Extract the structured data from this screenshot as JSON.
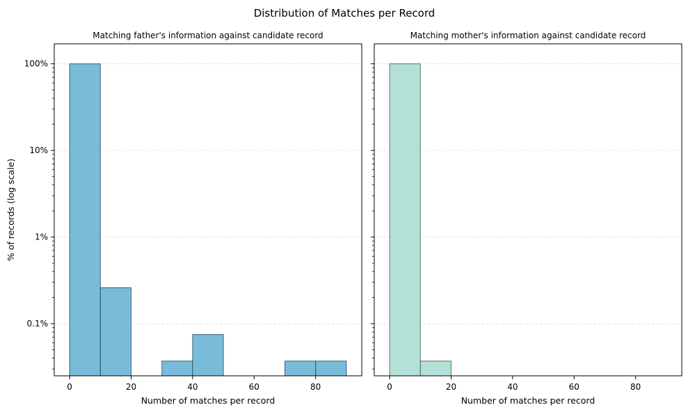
{
  "figure": {
    "suptitle": "Distribution of Matches per Record"
  },
  "chart_data": [
    {
      "type": "bar",
      "title": "Matching father's information against candidate record",
      "xlabel": "Number of matches per record",
      "ylabel": "% of records (log scale)",
      "yscale": "log",
      "xlim": [
        -5,
        95
      ],
      "ylim": [
        0.025,
        170
      ],
      "x_ticks": [
        0,
        20,
        40,
        60,
        80
      ],
      "y_ticks": [
        0.1,
        1,
        10,
        100
      ],
      "y_tick_labels": [
        "0.1%",
        "1%",
        "10%",
        "100%"
      ],
      "grid": "y dashed",
      "bar_color": "#78bcd9",
      "bins": [
        {
          "start": 0,
          "end": 10,
          "value": 100
        },
        {
          "start": 10,
          "end": 20,
          "value": 0.26
        },
        {
          "start": 20,
          "end": 30,
          "value": 0
        },
        {
          "start": 30,
          "end": 40,
          "value": 0.037
        },
        {
          "start": 40,
          "end": 50,
          "value": 0.075
        },
        {
          "start": 50,
          "end": 60,
          "value": 0
        },
        {
          "start": 60,
          "end": 70,
          "value": 0
        },
        {
          "start": 70,
          "end": 80,
          "value": 0.037
        },
        {
          "start": 80,
          "end": 90,
          "value": 0.037
        }
      ]
    },
    {
      "type": "bar",
      "title": "Matching mother's information against candidate record",
      "xlabel": "Number of matches per record",
      "ylabel": "",
      "yscale": "log",
      "xlim": [
        -5,
        95
      ],
      "ylim": [
        0.025,
        170
      ],
      "x_ticks": [
        0,
        20,
        40,
        60,
        80
      ],
      "y_ticks": [
        0.1,
        1,
        10,
        100
      ],
      "y_tick_labels": [],
      "grid": "y dashed",
      "bar_color": "#b3e0d7",
      "bins": [
        {
          "start": 0,
          "end": 10,
          "value": 100
        },
        {
          "start": 10,
          "end": 20,
          "value": 0.037
        },
        {
          "start": 20,
          "end": 30,
          "value": 0
        },
        {
          "start": 30,
          "end": 40,
          "value": 0
        },
        {
          "start": 40,
          "end": 50,
          "value": 0
        },
        {
          "start": 50,
          "end": 60,
          "value": 0
        },
        {
          "start": 60,
          "end": 70,
          "value": 0
        },
        {
          "start": 70,
          "end": 80,
          "value": 0
        },
        {
          "start": 80,
          "end": 90,
          "value": 0
        }
      ]
    }
  ]
}
